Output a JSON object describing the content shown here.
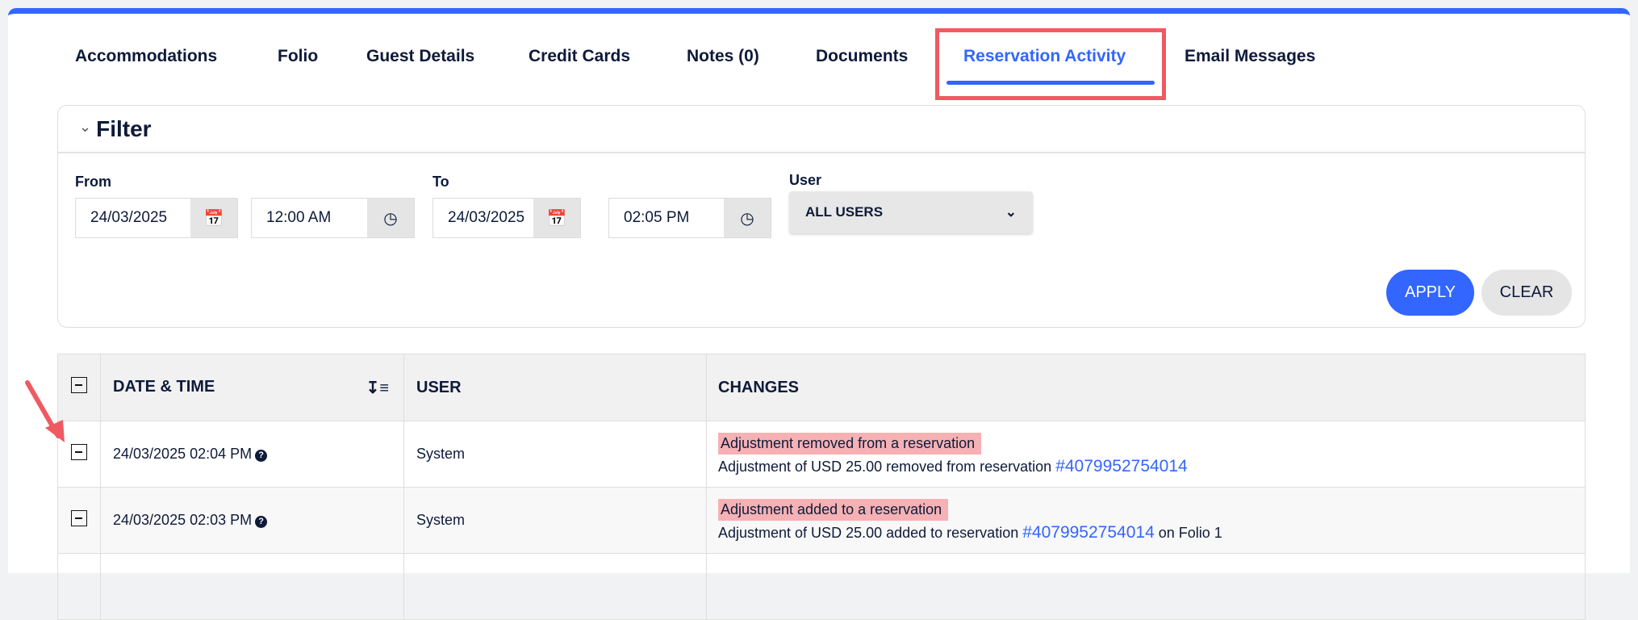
{
  "tabs": [
    {
      "label": "Accommodations"
    },
    {
      "label": "Folio"
    },
    {
      "label": "Guest Details"
    },
    {
      "label": "Credit Cards"
    },
    {
      "label": "Notes (0)"
    },
    {
      "label": "Documents"
    },
    {
      "label": "Reservation Activity",
      "active": true
    },
    {
      "label": "Email Messages"
    }
  ],
  "filter": {
    "title": "Filter",
    "from_label": "From",
    "to_label": "To",
    "user_label": "User",
    "from_date": "24/03/2025",
    "from_time": "12:00 AM",
    "to_date": "24/03/2025",
    "to_time": "02:05 PM",
    "user_value": "ALL USERS",
    "apply_label": "APPLY",
    "clear_label": "CLEAR"
  },
  "table": {
    "headers": [
      "DATE & TIME",
      "USER",
      "CHANGES"
    ],
    "rows": [
      {
        "datetime": "24/03/2025 02:04 PM",
        "user": "System",
        "tag": "Adjustment removed from a reservation",
        "detail": "Adjustment of USD 25.00 removed from reservation",
        "link": "#4079952754014",
        "suffix": ""
      },
      {
        "datetime": "24/03/2025 02:03 PM",
        "user": "System",
        "tag": "Adjustment added to a reservation",
        "detail": "Adjustment of USD 25.00 added to reservation",
        "link": "#4079952754014",
        "suffix": "on Folio 1"
      }
    ]
  },
  "colors": {
    "accent": "#3366ff",
    "highlight": "#f6b1b4",
    "annotation": "#ef5a62"
  }
}
